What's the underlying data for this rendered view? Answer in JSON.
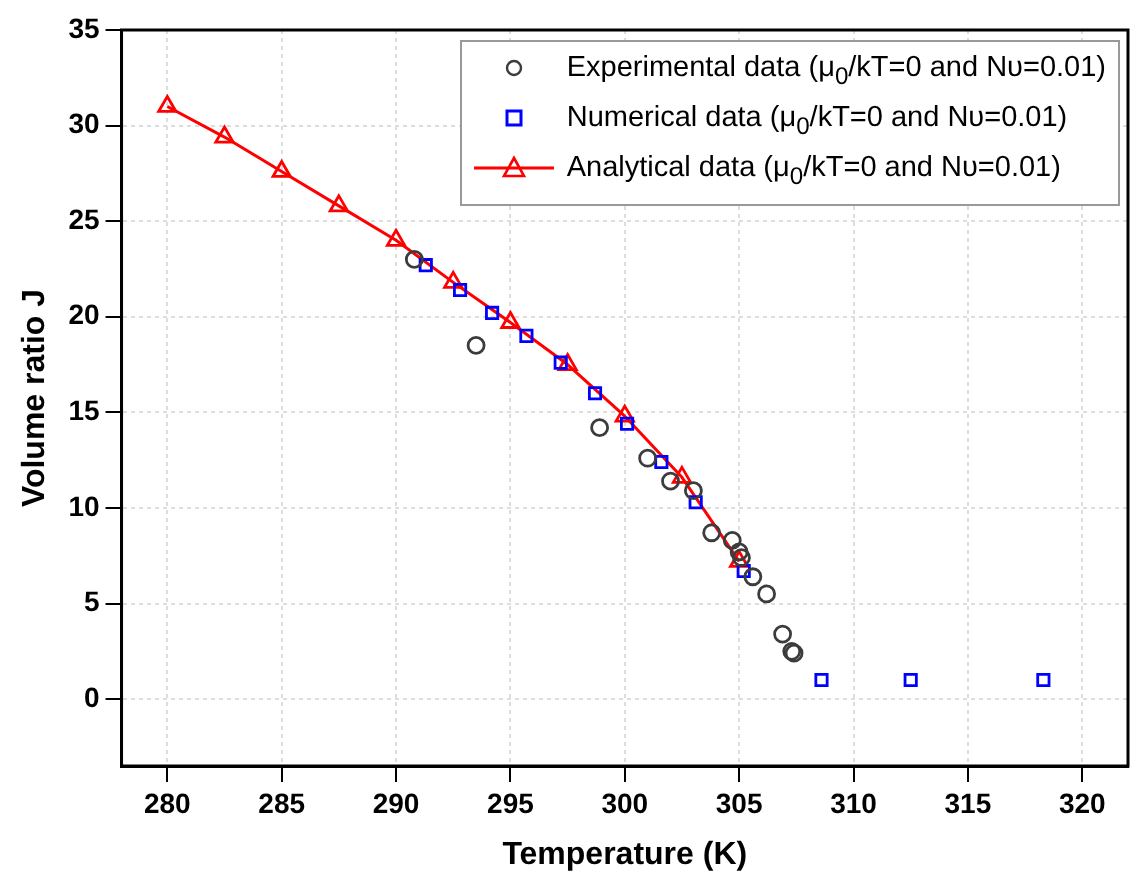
{
  "chart_data": {
    "type": "scatter",
    "xlabel": "Temperature (K)",
    "ylabel": "Volume ratio J",
    "xlim": [
      278,
      322
    ],
    "xticks": [
      280,
      285,
      290,
      295,
      300,
      305,
      310,
      315,
      320
    ],
    "ylim": [
      -3.5,
      35
    ],
    "yticks": [
      0,
      5,
      10,
      15,
      20,
      25,
      30,
      35
    ],
    "grid": true,
    "legend": "top right",
    "series": [
      {
        "name": "Experimental data (μ$_{0}$/kT=0 and Nυ=0.01)",
        "type": "scatter",
        "marker": "circle",
        "color": "#3c3c3c",
        "x": [
          290.8,
          293.5,
          298.9,
          301,
          302,
          303,
          303.8,
          304.7,
          305,
          305.1,
          305.6,
          306.2,
          306.9,
          307.3,
          307.4
        ],
        "values": [
          23,
          18.5,
          14.2,
          12.6,
          11.4,
          10.9,
          8.7,
          8.3,
          7.7,
          7.4,
          6.4,
          5.5,
          3.4,
          2.5,
          2.4
        ]
      },
      {
        "name": "Numerical data (μ$_{0}$/kT=0 and Nυ=0.01)",
        "type": "scatter",
        "marker": "square",
        "color": "#0000ff",
        "x": [
          291.3,
          292.8,
          294.2,
          295.7,
          297.2,
          298.7,
          300.1,
          301.6,
          303.1,
          305.2,
          308.6,
          312.5,
          318.3
        ],
        "values": [
          22.7,
          21.4,
          20.2,
          19,
          17.6,
          16,
          14.4,
          12.4,
          10.3,
          6.7,
          1,
          1,
          1
        ]
      },
      {
        "name": "Analytical data (μ$_{0}$/kT=0 and Nυ=0.01)",
        "type": "line",
        "marker": "triangle",
        "line_style": "solid",
        "color": "#ff0000",
        "x": [
          280,
          282.5,
          285,
          287.5,
          290,
          292.5,
          295,
          297.5,
          300,
          302.5,
          305
        ],
        "values": [
          31,
          29.4,
          27.6,
          25.8,
          24,
          21.8,
          19.7,
          17.5,
          14.8,
          11.6,
          7.2
        ]
      }
    ]
  }
}
